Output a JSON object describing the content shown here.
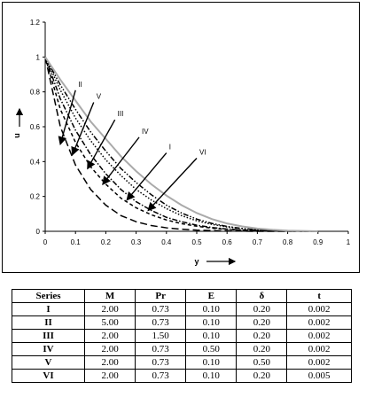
{
  "chart_data": {
    "type": "line",
    "title": "",
    "xlabel": "y",
    "ylabel": "u",
    "xlim": [
      0,
      1
    ],
    "ylim": [
      0,
      1.2
    ],
    "xticks": [
      "0",
      "0.1",
      "0.2",
      "0.3",
      "0.4",
      "0.5",
      "0.6",
      "0.7",
      "0.8",
      "0.9",
      "1"
    ],
    "yticks": [
      "0",
      "0.2",
      "0.4",
      "0.6",
      "0.8",
      "1",
      "1.2"
    ],
    "grid": false,
    "legend": "none",
    "x": [
      0,
      0.05,
      0.1,
      0.15,
      0.2,
      0.25,
      0.3,
      0.35,
      0.4,
      0.45,
      0.5,
      0.55,
      0.6,
      0.65,
      0.7,
      0.75,
      0.8,
      0.85,
      0.9
    ],
    "series": [
      {
        "name": "I",
        "style": "dash-dot-dot",
        "color": "#000000",
        "values": [
          1,
          0.84,
          0.7,
          0.57,
          0.46,
          0.36,
          0.28,
          0.21,
          0.15,
          0.105,
          0.07,
          0.045,
          0.028,
          0.016,
          0.009,
          0.005,
          0.002,
          0.001,
          0
        ]
      },
      {
        "name": "II",
        "style": "long-dash",
        "color": "#000000",
        "values": [
          1,
          0.6,
          0.38,
          0.24,
          0.15,
          0.09,
          0.055,
          0.033,
          0.02,
          0.012,
          0.007,
          0.004,
          0.002,
          0.001,
          0,
          0,
          0,
          0,
          0
        ]
      },
      {
        "name": "III",
        "style": "dash-dot",
        "color": "#000000",
        "values": [
          1,
          0.76,
          0.58,
          0.44,
          0.33,
          0.24,
          0.17,
          0.12,
          0.08,
          0.055,
          0.035,
          0.022,
          0.013,
          0.008,
          0.004,
          0.002,
          0.001,
          0,
          0
        ]
      },
      {
        "name": "IV",
        "style": "dotted",
        "color": "#000000",
        "values": [
          1,
          0.81,
          0.65,
          0.52,
          0.41,
          0.32,
          0.24,
          0.18,
          0.13,
          0.09,
          0.06,
          0.04,
          0.025,
          0.015,
          0.008,
          0.004,
          0.002,
          0.001,
          0
        ]
      },
      {
        "name": "V",
        "style": "dashed",
        "color": "#000000",
        "values": [
          1,
          0.7,
          0.51,
          0.37,
          0.27,
          0.19,
          0.135,
          0.095,
          0.065,
          0.044,
          0.029,
          0.018,
          0.011,
          0.006,
          0.003,
          0.002,
          0.001,
          0,
          0
        ]
      },
      {
        "name": "VI",
        "style": "solid",
        "color": "#aaaaaa",
        "values": [
          1,
          0.87,
          0.75,
          0.63,
          0.53,
          0.43,
          0.345,
          0.27,
          0.205,
          0.15,
          0.105,
          0.07,
          0.045,
          0.028,
          0.016,
          0.009,
          0.004,
          0.002,
          0
        ]
      }
    ],
    "annotations": [
      {
        "text": "II",
        "x": 0.1,
        "y": 0.83,
        "arrow_to": [
          0.05,
          0.5
        ]
      },
      {
        "text": "V",
        "x": 0.16,
        "y": 0.76,
        "arrow_to": [
          0.09,
          0.44
        ]
      },
      {
        "text": "III",
        "x": 0.23,
        "y": 0.66,
        "arrow_to": [
          0.14,
          0.36
        ]
      },
      {
        "text": "IV",
        "x": 0.31,
        "y": 0.56,
        "arrow_to": [
          0.19,
          0.27
        ]
      },
      {
        "text": "I",
        "x": 0.4,
        "y": 0.47,
        "arrow_to": [
          0.27,
          0.18
        ]
      },
      {
        "text": "VI",
        "x": 0.5,
        "y": 0.44,
        "arrow_to": [
          0.34,
          0.12
        ]
      }
    ]
  },
  "table": {
    "headers": [
      "Series",
      "M",
      "Pr",
      "E",
      "δ",
      "t"
    ],
    "rows": [
      [
        "I",
        "2.00",
        "0.73",
        "0.10",
        "0.20",
        "0.002"
      ],
      [
        "II",
        "5.00",
        "0.73",
        "0.10",
        "0.20",
        "0.002"
      ],
      [
        "III",
        "2.00",
        "1.50",
        "0.10",
        "0.20",
        "0.002"
      ],
      [
        "IV",
        "2.00",
        "0.73",
        "0.50",
        "0.20",
        "0.002"
      ],
      [
        "V",
        "2.00",
        "0.73",
        "0.10",
        "0.50",
        "0.002"
      ],
      [
        "VI",
        "2.00",
        "0.73",
        "0.10",
        "0.20",
        "0.005"
      ]
    ]
  }
}
